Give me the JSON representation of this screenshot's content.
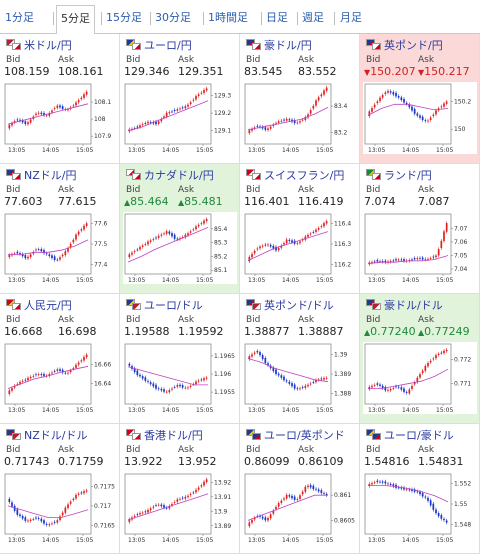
{
  "tabs": [
    {
      "label": "1分足",
      "active": false
    },
    {
      "label": "5分足",
      "active": true
    },
    {
      "label": "15分足",
      "active": false
    },
    {
      "label": "30分足",
      "active": false
    },
    {
      "label": "1時間足",
      "active": false
    },
    {
      "label": "日足",
      "active": false
    },
    {
      "label": "週足",
      "active": false
    },
    {
      "label": "月足",
      "active": false
    }
  ],
  "colors": {
    "up_candle": "#e02020",
    "down_candle": "#1a35c8",
    "ma_line": "#c040c0",
    "up_bg": "#e2f3dc",
    "down_bg": "#fbd9d9"
  },
  "labels": {
    "bid": "Bid",
    "ask": "Ask"
  },
  "x_ticks": [
    "13:05",
    "14:05",
    "15:05"
  ],
  "pairs": [
    {
      "name": "米ドル/円",
      "flags": [
        "us",
        "jp"
      ],
      "bid": "108.159",
      "ask": "108.161",
      "state": "none",
      "chart_data": {
        "type": "candlestick",
        "y_ticks": [
          "108.1",
          "108",
          "107.9"
        ],
        "ylim": [
          107.86,
          108.2
        ],
        "trend": [
          107.95,
          108.0,
          107.97,
          108.04,
          108.02,
          108.08,
          108.05,
          108.1,
          108.16
        ],
        "ma": [
          107.97,
          107.99,
          108.01,
          108.03,
          108.05,
          108.07,
          108.09
        ]
      }
    },
    {
      "name": "ユーロ/円",
      "flags": [
        "eu",
        "jp"
      ],
      "bid": "129.346",
      "ask": "129.351",
      "state": "none",
      "chart_data": {
        "type": "candlestick",
        "y_ticks": [
          "129.3",
          "129.2",
          "129.1"
        ],
        "ylim": [
          129.03,
          129.36
        ],
        "trend": [
          129.1,
          129.12,
          129.15,
          129.14,
          129.2,
          129.22,
          129.24,
          129.3,
          129.34
        ],
        "ma": [
          129.1,
          129.12,
          129.15,
          129.18,
          129.21,
          129.24,
          129.27
        ]
      }
    },
    {
      "name": "豪ドル/円",
      "flags": [
        "au",
        "jp"
      ],
      "bid": "83.545",
      "ask": "83.552",
      "state": "none",
      "chart_data": {
        "type": "candlestick",
        "y_ticks": [
          "83.4",
          "83.2"
        ],
        "ylim": [
          83.12,
          83.56
        ],
        "trend": [
          83.2,
          83.25,
          83.22,
          83.28,
          83.3,
          83.27,
          83.32,
          83.45,
          83.54
        ],
        "ma": [
          83.22,
          83.24,
          83.26,
          83.28,
          83.3,
          83.34,
          83.39
        ]
      }
    },
    {
      "name": "英ポンド/円",
      "flags": [
        "gb",
        "jp"
      ],
      "bid": "150.207",
      "ask": "150.217",
      "state": "down",
      "arrow": "▼",
      "chart_data": {
        "type": "candlestick",
        "y_ticks": [
          "150.2",
          "150"
        ],
        "ylim": [
          149.9,
          150.32
        ],
        "trend": [
          150.1,
          150.2,
          150.28,
          150.24,
          150.18,
          150.1,
          150.05,
          150.14,
          150.2
        ],
        "ma": [
          150.1,
          150.15,
          150.18,
          150.18,
          150.16,
          150.14,
          150.15
        ]
      }
    },
    {
      "name": "NZドル/円",
      "flags": [
        "nz",
        "jp"
      ],
      "bid": "77.603",
      "ask": "77.615",
      "state": "none",
      "chart_data": {
        "type": "candlestick",
        "y_ticks": [
          "77.6",
          "77.5",
          "77.4"
        ],
        "ylim": [
          77.36,
          77.64
        ],
        "trend": [
          77.44,
          77.46,
          77.43,
          77.48,
          77.45,
          77.42,
          77.47,
          77.55,
          77.6
        ],
        "ma": [
          77.45,
          77.45,
          77.46,
          77.46,
          77.47,
          77.49,
          77.52
        ]
      }
    },
    {
      "name": "カナダドル/円",
      "flags": [
        "ca",
        "jp"
      ],
      "bid": "85.464",
      "ask": "85.481",
      "state": "up",
      "arrow": "▲",
      "chart_data": {
        "type": "candlestick",
        "y_ticks": [
          "85.4",
          "85.3",
          "85.2",
          "85.1"
        ],
        "ylim": [
          85.08,
          85.5
        ],
        "trend": [
          85.2,
          85.25,
          85.3,
          85.34,
          85.38,
          85.32,
          85.36,
          85.42,
          85.47
        ],
        "ma": [
          85.16,
          85.2,
          85.25,
          85.29,
          85.33,
          85.37,
          85.41
        ]
      }
    },
    {
      "name": "スイスフラン/円",
      "flags": [
        "ch",
        "jp"
      ],
      "bid": "116.401",
      "ask": "116.419",
      "state": "none",
      "chart_data": {
        "type": "candlestick",
        "y_ticks": [
          "116.4",
          "116.3",
          "116.2"
        ],
        "ylim": [
          116.16,
          116.44
        ],
        "trend": [
          116.22,
          116.28,
          116.3,
          116.27,
          116.32,
          116.3,
          116.34,
          116.37,
          116.41
        ],
        "ma": [
          116.22,
          116.25,
          116.28,
          116.3,
          116.32,
          116.34,
          116.36
        ]
      }
    },
    {
      "name": "ランド/円",
      "flags": [
        "za",
        "jp"
      ],
      "bid": "7.074",
      "ask": "7.087",
      "state": "none",
      "chart_data": {
        "type": "candlestick",
        "y_ticks": [
          "7.07",
          "7.06",
          "7.05",
          "7.04"
        ],
        "ylim": [
          7.037,
          7.08
        ],
        "trend": [
          7.044,
          7.046,
          7.045,
          7.047,
          7.046,
          7.048,
          7.047,
          7.05,
          7.074
        ],
        "ma": [
          7.044,
          7.045,
          7.045,
          7.046,
          7.046,
          7.047,
          7.05
        ]
      }
    },
    {
      "name": "人民元/円",
      "flags": [
        "cn",
        "jp"
      ],
      "bid": "16.668",
      "ask": "16.698",
      "state": "none",
      "chart_data": {
        "type": "candlestick",
        "y_ticks": [
          "16.66",
          "16.64"
        ],
        "ylim": [
          16.62,
          16.68
        ],
        "trend": [
          16.63,
          16.64,
          16.645,
          16.65,
          16.648,
          16.655,
          16.65,
          16.66,
          16.67
        ],
        "ma": [
          16.635,
          16.64,
          16.645,
          16.648,
          16.652,
          16.655,
          16.658
        ]
      }
    },
    {
      "name": "ユーロ/ドル",
      "flags": [
        "eu",
        "us"
      ],
      "bid": "1.19588",
      "ask": "1.19592",
      "state": "none",
      "chart_data": {
        "type": "candlestick",
        "y_ticks": [
          "1.1965",
          "1.196",
          "1.1955"
        ],
        "ylim": [
          1.1952,
          1.1968
        ],
        "trend": [
          1.1963,
          1.196,
          1.1958,
          1.1956,
          1.1955,
          1.1957,
          1.1956,
          1.1958,
          1.1959
        ],
        "ma": [
          1.1962,
          1.1961,
          1.196,
          1.1959,
          1.1958,
          1.1957,
          1.1957
        ]
      }
    },
    {
      "name": "英ポンド/ドル",
      "flags": [
        "gb",
        "us"
      ],
      "bid": "1.38877",
      "ask": "1.38887",
      "state": "none",
      "chart_data": {
        "type": "candlestick",
        "y_ticks": [
          "1.39",
          "1.389",
          "1.388"
        ],
        "ylim": [
          1.3875,
          1.3905
        ],
        "trend": [
          1.3898,
          1.3902,
          1.3895,
          1.389,
          1.3886,
          1.3882,
          1.3884,
          1.3887,
          1.3888
        ],
        "ma": [
          1.3898,
          1.3896,
          1.3893,
          1.3891,
          1.3889,
          1.3887,
          1.3886
        ]
      }
    },
    {
      "name": "豪ドル/ドル",
      "flags": [
        "au",
        "us"
      ],
      "bid": "0.77240",
      "ask": "0.77249",
      "state": "up",
      "arrow": "▲",
      "chart_data": {
        "type": "candlestick",
        "y_ticks": [
          "0.772",
          "0.771"
        ],
        "ylim": [
          0.7702,
          0.7726
        ],
        "trend": [
          0.7708,
          0.771,
          0.7707,
          0.7709,
          0.7706,
          0.7712,
          0.7718,
          0.7722,
          0.7724
        ],
        "ma": [
          0.7708,
          0.7708,
          0.7709,
          0.771,
          0.7711,
          0.7713,
          0.7716
        ]
      }
    },
    {
      "name": "NZドル/ドル",
      "flags": [
        "nz",
        "us"
      ],
      "bid": "0.71743",
      "ask": "0.71759",
      "state": "none",
      "chart_data": {
        "type": "candlestick",
        "y_ticks": [
          "0.7175",
          "0.717",
          "0.7165"
        ],
        "ylim": [
          0.7163,
          0.7178
        ],
        "trend": [
          0.7172,
          0.7168,
          0.7166,
          0.7167,
          0.7165,
          0.7166,
          0.717,
          0.7173,
          0.7174
        ],
        "ma": [
          0.717,
          0.7169,
          0.7168,
          0.7167,
          0.7167,
          0.7168,
          0.7169
        ]
      }
    },
    {
      "name": "香港ドル/円",
      "flags": [
        "hk",
        "jp"
      ],
      "bid": "13.922",
      "ask": "13.952",
      "state": "none",
      "chart_data": {
        "type": "candlestick",
        "y_ticks": [
          "13.92",
          "13.91",
          "13.9",
          "13.89"
        ],
        "ylim": [
          13.885,
          13.925
        ],
        "trend": [
          13.893,
          13.898,
          13.9,
          13.905,
          13.902,
          13.908,
          13.91,
          13.915,
          13.922
        ],
        "ma": [
          13.894,
          13.897,
          13.9,
          13.903,
          13.906,
          13.909,
          13.912
        ]
      }
    },
    {
      "name": "ユーロ/英ポンド",
      "flags": [
        "eu",
        "gb"
      ],
      "bid": "0.86099",
      "ask": "0.86109",
      "state": "none",
      "chart_data": {
        "type": "candlestick",
        "y_ticks": [
          "0.861",
          "0.8605"
        ],
        "ylim": [
          0.86025,
          0.8614
        ],
        "trend": [
          0.8604,
          0.8606,
          0.8605,
          0.8608,
          0.861,
          0.8609,
          0.8612,
          0.8611,
          0.861
        ],
        "ma": [
          0.8605,
          0.8606,
          0.8607,
          0.8608,
          0.8609,
          0.861,
          0.861
        ]
      }
    },
    {
      "name": "ユーロ/豪ドル",
      "flags": [
        "eu",
        "au"
      ],
      "bid": "1.54816",
      "ask": "1.54831",
      "state": "none",
      "chart_data": {
        "type": "candlestick",
        "y_ticks": [
          "1.552",
          "1.55",
          "1.548"
        ],
        "ylim": [
          1.5472,
          1.5528
        ],
        "trend": [
          1.5518,
          1.5522,
          1.552,
          1.5516,
          1.5514,
          1.5512,
          1.5505,
          1.549,
          1.5482
        ],
        "ma": [
          1.5518,
          1.5518,
          1.5517,
          1.5515,
          1.5512,
          1.5508,
          1.5502
        ]
      }
    }
  ]
}
